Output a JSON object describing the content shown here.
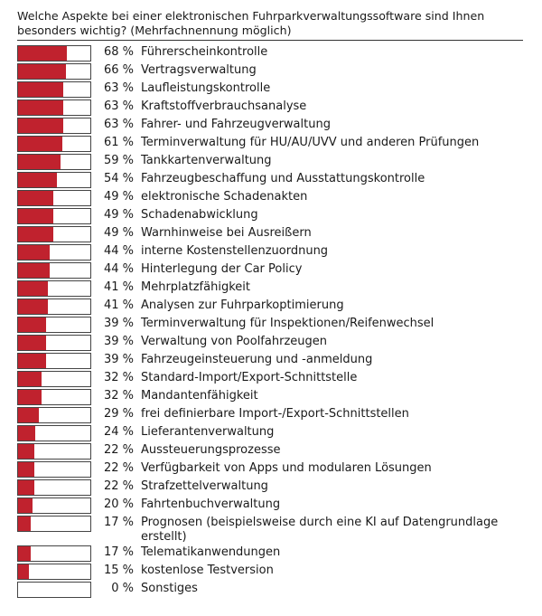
{
  "title": "Welche Aspekte bei einer elektronischen Fuhrparkverwaltungssoftware sind Ihnen besonders wichtig? (Mehrfachnennung möglich)",
  "chart_data": {
    "type": "bar",
    "orientation": "horizontal",
    "title": "Welche Aspekte bei einer elektronischen Fuhrparkverwaltungssoftware sind Ihnen besonders wichtig? (Mehrfachnennung möglich)",
    "unit": "%",
    "xlim": [
      0,
      100
    ],
    "bar_color": "#c0222e",
    "categories": [
      "Führerscheinkontrolle",
      "Vertragsverwaltung",
      "Laufleistungskontrolle",
      "Kraftstoffverbrauchsanalyse",
      "Fahrer- und Fahrzeugverwaltung",
      "Terminverwaltung für HU/AU/UVV und anderen Prüfungen",
      "Tankkartenverwaltung",
      "Fahrzeugbeschaffung und Ausstattungskontrolle",
      "elektronische Schadenakten",
      "Schadenabwicklung",
      "Warnhinweise bei Ausreißern",
      "interne Kostenstellenzuordnung",
      "Hinterlegung der Car Policy",
      "Mehrplatzfähigkeit",
      "Analysen zur Fuhrparkoptimierung",
      "Terminverwaltung für Inspektionen/Reifenwechsel",
      "Verwaltung von Poolfahrzeugen",
      "Fahrzeugeinsteuerung und -anmeldung",
      "Standard-Import/Export-Schnittstelle",
      "Mandantenfähigkeit",
      "frei definierbare Import-/Export-Schnittstellen",
      "Lieferantenverwaltung",
      "Aussteuerungsprozesse",
      "Verfügbarkeit von Apps und modularen Lösungen",
      "Strafzettelverwaltung",
      "Fahrtenbuchverwaltung",
      "Prognosen (beispielsweise durch eine KI auf Datengrundlage erstellt)",
      "Telematikanwendungen",
      "kostenlose Testversion",
      "Sonstiges"
    ],
    "values": [
      68,
      66,
      63,
      63,
      63,
      61,
      59,
      54,
      49,
      49,
      49,
      44,
      44,
      41,
      41,
      39,
      39,
      39,
      32,
      32,
      29,
      24,
      22,
      22,
      22,
      20,
      17,
      17,
      15,
      0
    ],
    "value_labels": [
      "68 %",
      "66 %",
      "63 %",
      "63 %",
      "63 %",
      "61 %",
      "59 %",
      "54 %",
      "49 %",
      "49 %",
      "49 %",
      "44 %",
      "44 %",
      "41 %",
      "41 %",
      "39 %",
      "39 %",
      "39 %",
      "32 %",
      "32 %",
      "29 %",
      "24 %",
      "22 %",
      "22 %",
      "22 %",
      "20 %",
      "17 %",
      "17 %",
      "15 %",
      "0 %"
    ]
  }
}
